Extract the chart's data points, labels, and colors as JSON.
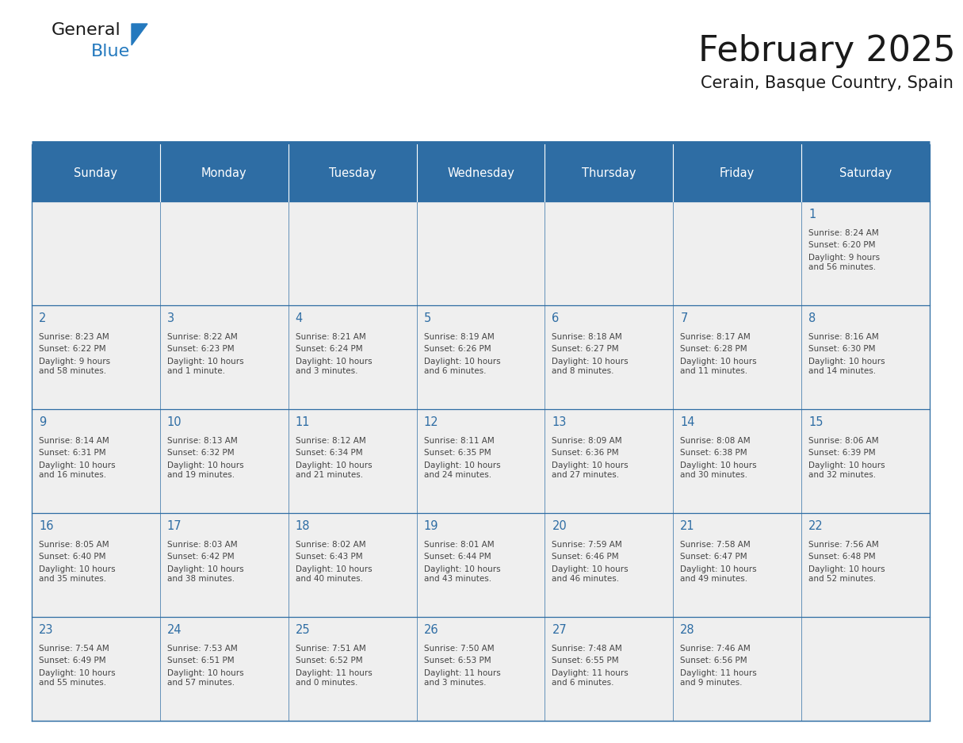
{
  "title": "February 2025",
  "subtitle": "Cerain, Basque Country, Spain",
  "days_of_week": [
    "Sunday",
    "Monday",
    "Tuesday",
    "Wednesday",
    "Thursday",
    "Friday",
    "Saturday"
  ],
  "header_bg": "#2E6DA4",
  "header_text": "#FFFFFF",
  "cell_bg_light": "#EFEFEF",
  "cell_bg_white": "#FFFFFF",
  "border_color": "#2E6DA4",
  "day_number_color": "#2E6DA4",
  "info_text_color": "#444444",
  "title_color": "#1a1a1a",
  "subtitle_color": "#1a1a1a",
  "logo_black_color": "#1a1a1a",
  "logo_blue_color": "#2479BE",
  "calendar_data": [
    [
      null,
      null,
      null,
      null,
      null,
      null,
      {
        "day": "1",
        "sunrise": "8:24 AM",
        "sunset": "6:20 PM",
        "daylight": "9 hours\nand 56 minutes."
      }
    ],
    [
      {
        "day": "2",
        "sunrise": "8:23 AM",
        "sunset": "6:22 PM",
        "daylight": "9 hours\nand 58 minutes."
      },
      {
        "day": "3",
        "sunrise": "8:22 AM",
        "sunset": "6:23 PM",
        "daylight": "10 hours\nand 1 minute."
      },
      {
        "day": "4",
        "sunrise": "8:21 AM",
        "sunset": "6:24 PM",
        "daylight": "10 hours\nand 3 minutes."
      },
      {
        "day": "5",
        "sunrise": "8:19 AM",
        "sunset": "6:26 PM",
        "daylight": "10 hours\nand 6 minutes."
      },
      {
        "day": "6",
        "sunrise": "8:18 AM",
        "sunset": "6:27 PM",
        "daylight": "10 hours\nand 8 minutes."
      },
      {
        "day": "7",
        "sunrise": "8:17 AM",
        "sunset": "6:28 PM",
        "daylight": "10 hours\nand 11 minutes."
      },
      {
        "day": "8",
        "sunrise": "8:16 AM",
        "sunset": "6:30 PM",
        "daylight": "10 hours\nand 14 minutes."
      }
    ],
    [
      {
        "day": "9",
        "sunrise": "8:14 AM",
        "sunset": "6:31 PM",
        "daylight": "10 hours\nand 16 minutes."
      },
      {
        "day": "10",
        "sunrise": "8:13 AM",
        "sunset": "6:32 PM",
        "daylight": "10 hours\nand 19 minutes."
      },
      {
        "day": "11",
        "sunrise": "8:12 AM",
        "sunset": "6:34 PM",
        "daylight": "10 hours\nand 21 minutes."
      },
      {
        "day": "12",
        "sunrise": "8:11 AM",
        "sunset": "6:35 PM",
        "daylight": "10 hours\nand 24 minutes."
      },
      {
        "day": "13",
        "sunrise": "8:09 AM",
        "sunset": "6:36 PM",
        "daylight": "10 hours\nand 27 minutes."
      },
      {
        "day": "14",
        "sunrise": "8:08 AM",
        "sunset": "6:38 PM",
        "daylight": "10 hours\nand 30 minutes."
      },
      {
        "day": "15",
        "sunrise": "8:06 AM",
        "sunset": "6:39 PM",
        "daylight": "10 hours\nand 32 minutes."
      }
    ],
    [
      {
        "day": "16",
        "sunrise": "8:05 AM",
        "sunset": "6:40 PM",
        "daylight": "10 hours\nand 35 minutes."
      },
      {
        "day": "17",
        "sunrise": "8:03 AM",
        "sunset": "6:42 PM",
        "daylight": "10 hours\nand 38 minutes."
      },
      {
        "day": "18",
        "sunrise": "8:02 AM",
        "sunset": "6:43 PM",
        "daylight": "10 hours\nand 40 minutes."
      },
      {
        "day": "19",
        "sunrise": "8:01 AM",
        "sunset": "6:44 PM",
        "daylight": "10 hours\nand 43 minutes."
      },
      {
        "day": "20",
        "sunrise": "7:59 AM",
        "sunset": "6:46 PM",
        "daylight": "10 hours\nand 46 minutes."
      },
      {
        "day": "21",
        "sunrise": "7:58 AM",
        "sunset": "6:47 PM",
        "daylight": "10 hours\nand 49 minutes."
      },
      {
        "day": "22",
        "sunrise": "7:56 AM",
        "sunset": "6:48 PM",
        "daylight": "10 hours\nand 52 minutes."
      }
    ],
    [
      {
        "day": "23",
        "sunrise": "7:54 AM",
        "sunset": "6:49 PM",
        "daylight": "10 hours\nand 55 minutes."
      },
      {
        "day": "24",
        "sunrise": "7:53 AM",
        "sunset": "6:51 PM",
        "daylight": "10 hours\nand 57 minutes."
      },
      {
        "day": "25",
        "sunrise": "7:51 AM",
        "sunset": "6:52 PM",
        "daylight": "11 hours\nand 0 minutes."
      },
      {
        "day": "26",
        "sunrise": "7:50 AM",
        "sunset": "6:53 PM",
        "daylight": "11 hours\nand 3 minutes."
      },
      {
        "day": "27",
        "sunrise": "7:48 AM",
        "sunset": "6:55 PM",
        "daylight": "11 hours\nand 6 minutes."
      },
      {
        "day": "28",
        "sunrise": "7:46 AM",
        "sunset": "6:56 PM",
        "daylight": "11 hours\nand 9 minutes."
      },
      null
    ]
  ],
  "fig_width": 11.88,
  "fig_height": 9.18,
  "num_weeks": 5,
  "num_cols": 7
}
